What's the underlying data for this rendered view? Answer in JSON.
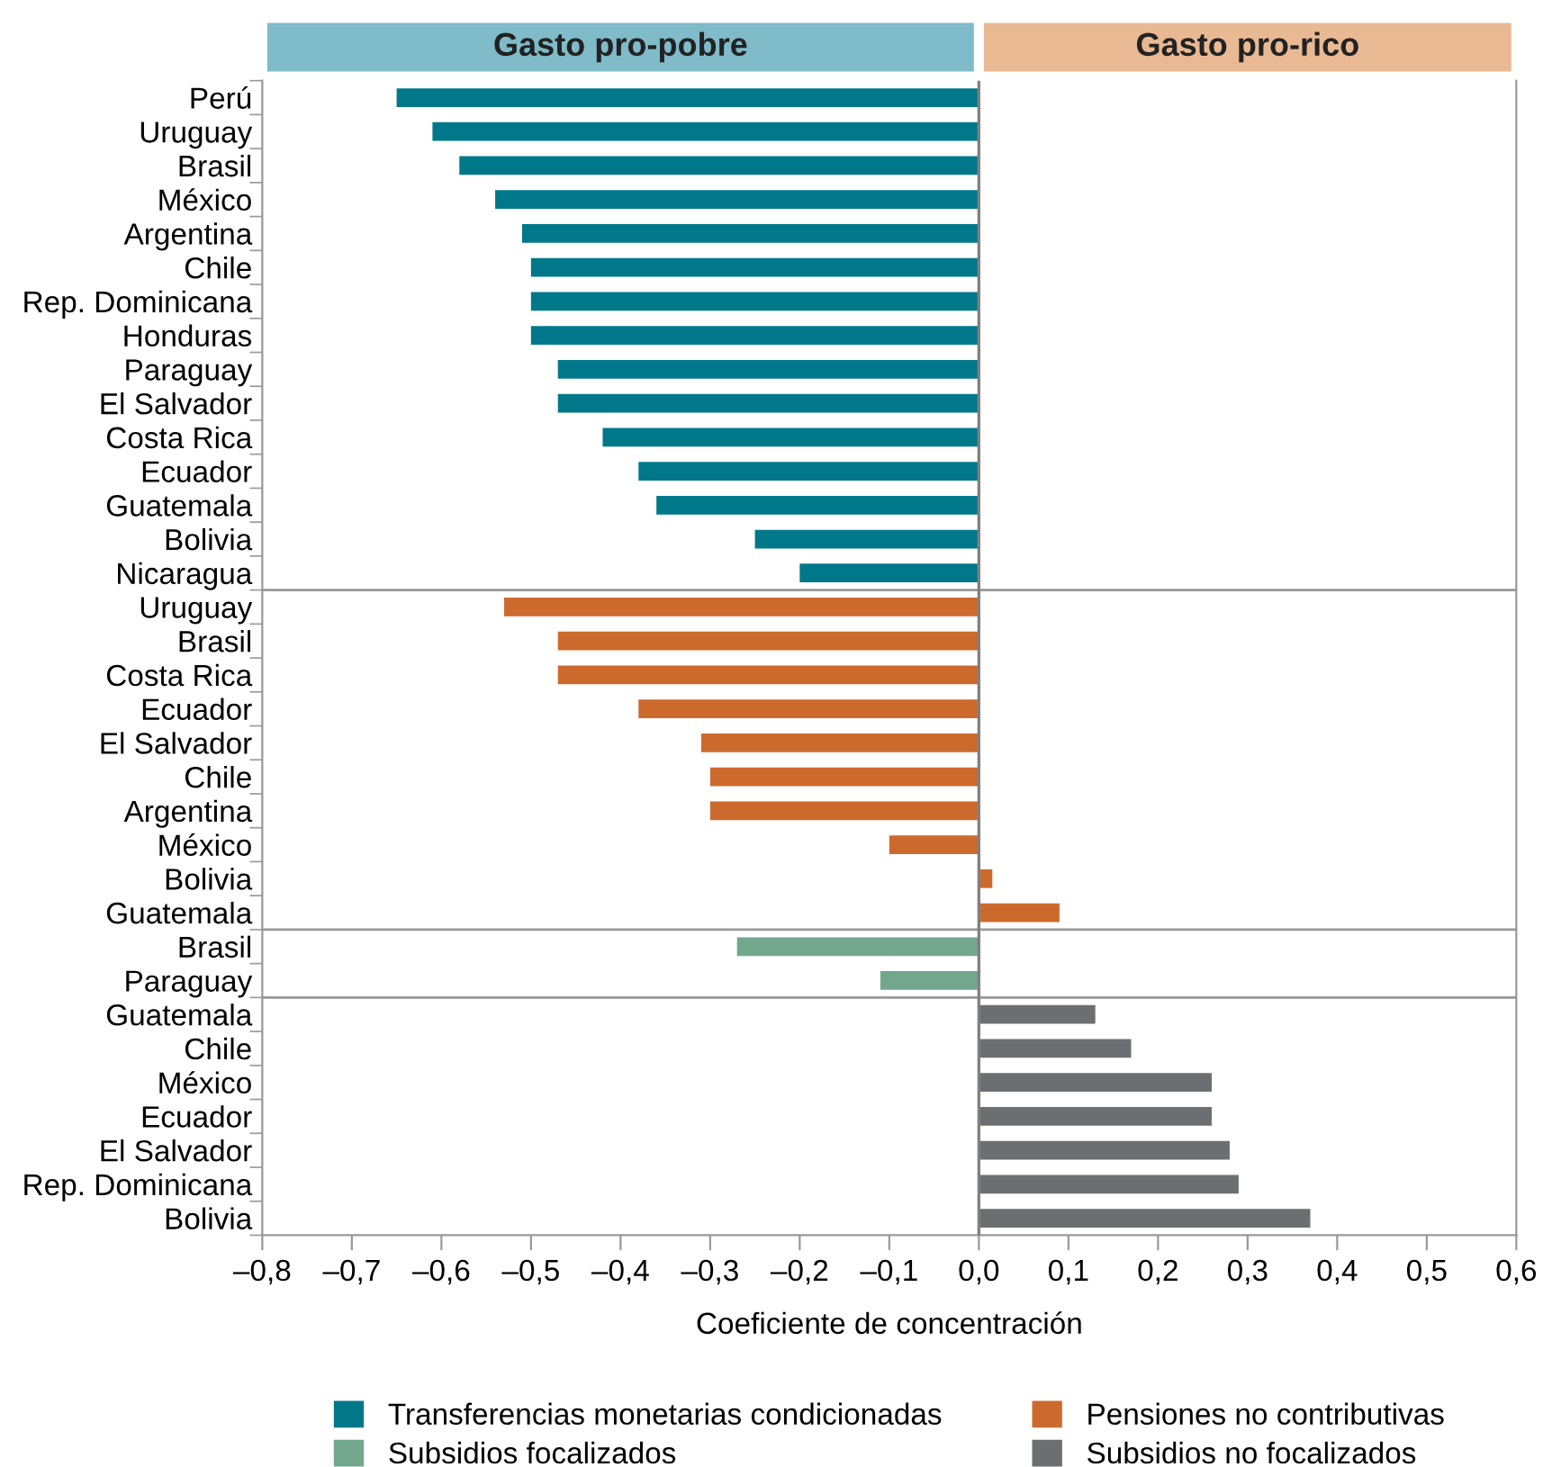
{
  "chart_data": {
    "type": "bar",
    "orientation": "horizontal",
    "xlabel": "Coeficiente de concentración",
    "categories": [
      "Perú",
      "Uruguay",
      "Brasil",
      "México",
      "Argentina",
      "Chile",
      "Rep. Dominicana",
      "Honduras",
      "Paraguay",
      "El Salvador",
      "Costa Rica",
      "Ecuador",
      "Guatemala",
      "Bolivia",
      "Nicaragua",
      "Uruguay",
      "Brasil",
      "Costa Rica",
      "Ecuador",
      "El Salvador",
      "Chile",
      "Argentina",
      "México",
      "Bolivia",
      "Guatemala",
      "Brasil",
      "Paraguay",
      "Guatemala",
      "Chile",
      "México",
      "Ecuador",
      "El Salvador",
      "Rep. Dominicana",
      "Bolivia"
    ],
    "series": [
      {
        "name": "Transferencias monetarias condicionadas",
        "color": "#00788a",
        "values": [
          -0.65,
          -0.61,
          -0.58,
          -0.54,
          -0.51,
          -0.5,
          -0.5,
          -0.5,
          -0.47,
          -0.47,
          -0.42,
          -0.38,
          -0.36,
          -0.25,
          -0.2,
          null,
          null,
          null,
          null,
          null,
          null,
          null,
          null,
          null,
          null,
          null,
          null,
          null,
          null,
          null,
          null,
          null,
          null,
          null
        ]
      },
      {
        "name": "Pensiones no contributivas",
        "color": "#cc6a2d",
        "values": [
          null,
          null,
          null,
          null,
          null,
          null,
          null,
          null,
          null,
          null,
          null,
          null,
          null,
          null,
          null,
          -0.53,
          -0.47,
          -0.47,
          -0.38,
          -0.31,
          -0.3,
          -0.3,
          -0.1,
          0.015,
          0.09,
          null,
          null,
          null,
          null,
          null,
          null,
          null,
          null,
          null
        ]
      },
      {
        "name": "Subsidios focalizados",
        "color": "#72a78d",
        "values": [
          null,
          null,
          null,
          null,
          null,
          null,
          null,
          null,
          null,
          null,
          null,
          null,
          null,
          null,
          null,
          null,
          null,
          null,
          null,
          null,
          null,
          null,
          null,
          null,
          null,
          -0.27,
          -0.11,
          null,
          null,
          null,
          null,
          null,
          null,
          null
        ]
      },
      {
        "name": "Subsidios no focalizados",
        "color": "#6d6e71",
        "values": [
          null,
          null,
          null,
          null,
          null,
          null,
          null,
          null,
          null,
          null,
          null,
          null,
          null,
          null,
          null,
          null,
          null,
          null,
          null,
          null,
          null,
          null,
          null,
          null,
          null,
          null,
          null,
          0.13,
          0.17,
          0.26,
          0.26,
          0.28,
          0.29,
          0.37
        ]
      }
    ],
    "xlim": [
      -0.8,
      0.6
    ],
    "xticks": [
      {
        "value": -0.8,
        "label": "–0,8"
      },
      {
        "value": -0.7,
        "label": "–0,7"
      },
      {
        "value": -0.6,
        "label": "–0,6"
      },
      {
        "value": -0.5,
        "label": "–0,5"
      },
      {
        "value": -0.4,
        "label": "–0,4"
      },
      {
        "value": -0.3,
        "label": "–0,3"
      },
      {
        "value": -0.2,
        "label": "–0,2"
      },
      {
        "value": -0.1,
        "label": "–0,1"
      },
      {
        "value": 0,
        "label": "0,0"
      },
      {
        "value": 0.1,
        "label": "0,1"
      },
      {
        "value": 0.2,
        "label": "0,2"
      },
      {
        "value": 0.3,
        "label": "0,3"
      },
      {
        "value": 0.4,
        "label": "0,4"
      },
      {
        "value": 0.5,
        "label": "0,5"
      },
      {
        "value": 0.6,
        "label": "0,6"
      }
    ],
    "ref_lines": [
      {
        "axis": "x",
        "value": 0,
        "color": "#808080"
      }
    ],
    "annotations": [
      "Gasto pro-pobre",
      "Gasto pro-rico"
    ],
    "grid": false,
    "legend": "bottom"
  }
}
